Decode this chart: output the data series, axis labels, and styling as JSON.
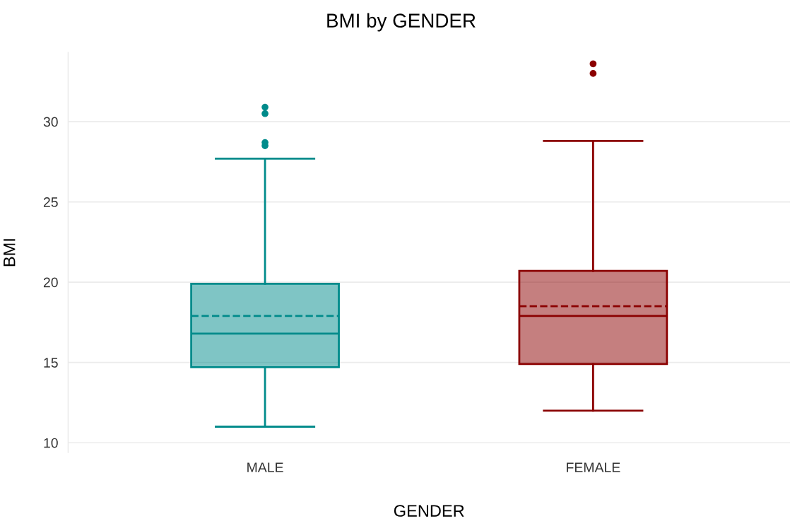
{
  "chart_data": {
    "type": "box",
    "title": "BMI by GENDER",
    "xlabel": "GENDER",
    "ylabel": "BMI",
    "categories": [
      "MALE",
      "FEMALE"
    ],
    "colors": [
      "#008b8b",
      "#8b0000"
    ],
    "boxes": [
      {
        "low": 11.0,
        "q1": 14.7,
        "median": 16.8,
        "q3": 19.9,
        "high": 27.7,
        "mean": 17.9,
        "outliers": [
          30.9,
          30.5,
          28.7,
          28.5
        ]
      },
      {
        "low": 12.0,
        "q1": 14.9,
        "median": 17.9,
        "q3": 20.7,
        "high": 28.8,
        "mean": 18.5,
        "outliers": [
          33.6,
          33.0
        ]
      }
    ],
    "ylim": [
      9.4,
      34.3
    ],
    "yticks": [
      10,
      15,
      20,
      25,
      30
    ],
    "grid": "y",
    "legend": false
  }
}
